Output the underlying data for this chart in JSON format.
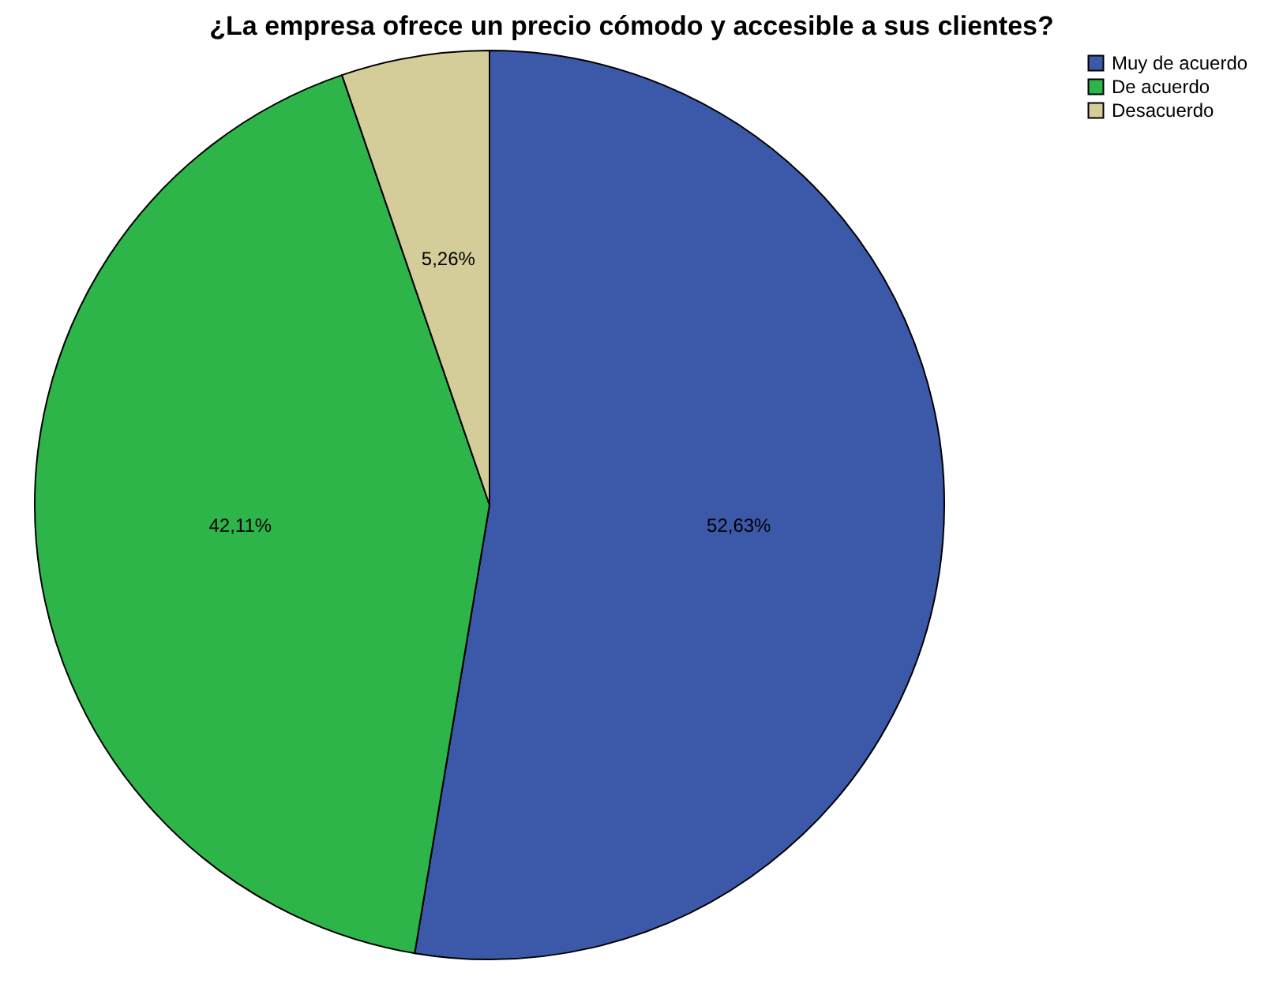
{
  "chart_data": {
    "type": "pie",
    "title": "¿La empresa ofrece un precio cómodo y accesible a sus clientes?",
    "categories": [
      "Muy de acuerdo",
      "De acuerdo",
      "Desacuerdo"
    ],
    "values": [
      52.63,
      42.11,
      5.26
    ],
    "colors": [
      "#3c58a8",
      "#2db54a",
      "#d4cd9a"
    ],
    "value_labels": [
      "52,63%",
      "42,11%",
      "5,26%"
    ],
    "legend": "top right"
  }
}
